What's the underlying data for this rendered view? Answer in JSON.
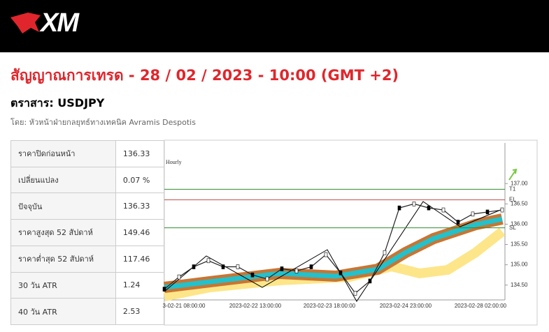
{
  "header": {
    "logo": "XM"
  },
  "title": "สัญญาณการเทรด - 28 / 02 / 2023 - 10:00 (GMT +2)",
  "instrument": "ตราสาร: USDJPY",
  "author": "โดย: หัวหน้าฝ่ายกลยุทธ์ทางเทคนิค Avramis Despotis",
  "table": {
    "rows": [
      [
        "ราคาปิดก่อนหน้า",
        "136.33"
      ],
      [
        "เปลี่ยนแปลง",
        "0.07 %"
      ],
      [
        "ปัจจุบัน",
        "136.33"
      ],
      [
        "ราคาสูงสุด 52 สัปดาห์",
        "149.46"
      ],
      [
        "ราคาต่ำสุด 52 สัปดาห์",
        "117.46"
      ],
      [
        "30 วัน ATR",
        "1.24"
      ],
      [
        "40 วัน ATR",
        "2.53"
      ]
    ]
  },
  "chart": {
    "label": "Hourly",
    "ylim": [
      134.1,
      138.0
    ],
    "yticks": [
      {
        "value": 137,
        "label": "137.00"
      },
      {
        "value": 136.5,
        "label": "136.50"
      },
      {
        "value": 136,
        "label": "136.00"
      },
      {
        "value": 135.5,
        "label": "135.50"
      },
      {
        "value": 135,
        "label": "135.00"
      },
      {
        "value": 134.5,
        "label": "134.50"
      }
    ],
    "xlabels": [
      "3-02-21 08:00:00",
      "2023-02-22 13:00:00",
      "2023-02-23 18:00:00",
      "2023-02-24 23:00:00",
      "2023-02-28 02:00:00"
    ],
    "levels": [
      {
        "label": "T1",
        "value": 136.86,
        "color": "#2e8b2e"
      },
      {
        "label": "EL",
        "value": 136.6,
        "color": "#c0504d"
      },
      {
        "label": "SL",
        "value": 135.91,
        "color": "#2e8b2e"
      }
    ],
    "price": [
      134.4,
      134.7,
      134.95,
      135.1,
      134.95,
      134.95,
      134.75,
      134.65,
      134.9,
      134.85,
      134.95,
      135.25,
      134.8,
      134.3,
      134.6,
      135.3,
      136.4,
      136.5,
      136.4,
      136.35,
      136.05,
      136.25,
      136.3,
      136.35
    ]
  }
}
